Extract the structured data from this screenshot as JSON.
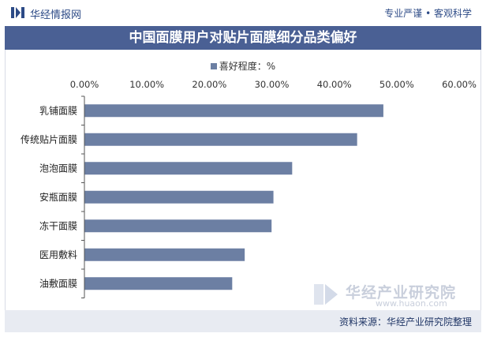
{
  "header": {
    "brand": "华经情报网",
    "slogan": "专业严谨 • 客观科学"
  },
  "legend": {
    "label": "喜好程度：%"
  },
  "watermark": {
    "name": "华经产业研究院",
    "url": "www.huaon.com"
  },
  "footer": {
    "source": "资料来源：华经产业研究院整理"
  },
  "colors": {
    "bar": "#6c7fa3",
    "title_band": "#4a6094",
    "brand": "#2c4a86"
  },
  "chart_data": {
    "type": "bar",
    "orientation": "horizontal",
    "title": "中国面膜用户对贴片面膜细分品类偏好",
    "categories": [
      "乳铺面膜",
      "传统贴片面膜",
      "泡泡面膜",
      "安瓶面膜",
      "冻干面膜",
      "医用敷料",
      "油敷面膜"
    ],
    "series": [
      {
        "name": "喜好程度：%",
        "values": [
          47.8,
          43.6,
          33.2,
          30.2,
          29.9,
          25.6,
          23.6
        ]
      }
    ],
    "xlim": [
      0,
      60
    ],
    "xticks": [
      "0.00%",
      "10.00%",
      "20.00%",
      "30.00%",
      "40.00%",
      "50.00%",
      "60.00%"
    ],
    "tick_values": [
      0,
      10,
      20,
      30,
      40,
      50,
      60
    ],
    "xlabel": "",
    "ylabel": "",
    "legend_position": "top",
    "grid": false
  }
}
